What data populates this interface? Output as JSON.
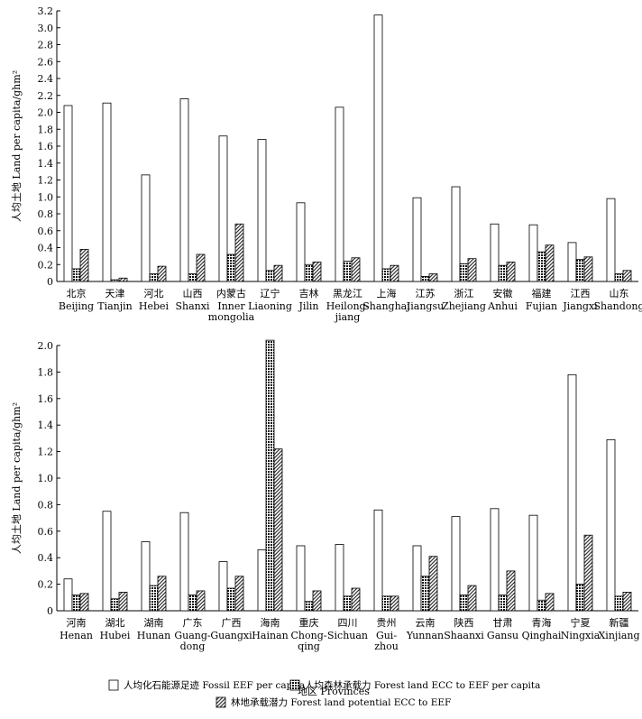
{
  "chart_data": [
    {
      "type": "bar",
      "ylabel": "人均土地  Land per capita/ghm²",
      "ylim": [
        0,
        3.2
      ],
      "yticks": [
        "0",
        "0.2",
        "0.4",
        "0.6",
        "0.8",
        "1.0",
        "1.2",
        "1.4",
        "1.6",
        "1.8",
        "2.0",
        "2.2",
        "2.4",
        "2.6",
        "2.8",
        "3.0",
        "3.2"
      ],
      "categories": [
        {
          "cn": "北京",
          "en": [
            "Beijing"
          ]
        },
        {
          "cn": "天津",
          "en": [
            "Tianjin"
          ]
        },
        {
          "cn": "河北",
          "en": [
            "Hebei"
          ]
        },
        {
          "cn": "山西",
          "en": [
            "Shanxi"
          ]
        },
        {
          "cn": "内蒙古",
          "en": [
            "Inner",
            "mongolia"
          ]
        },
        {
          "cn": "辽宁",
          "en": [
            "Liaoning"
          ]
        },
        {
          "cn": "吉林",
          "en": [
            "Jilin"
          ]
        },
        {
          "cn": "黑龙江",
          "en": [
            "Heilong-",
            "jiang"
          ]
        },
        {
          "cn": "上海",
          "en": [
            "Shanghai"
          ]
        },
        {
          "cn": "江苏",
          "en": [
            "Jiangsu"
          ]
        },
        {
          "cn": "浙江",
          "en": [
            "Zhejiang"
          ]
        },
        {
          "cn": "安徽",
          "en": [
            "Anhui"
          ]
        },
        {
          "cn": "福建",
          "en": [
            "Fujian"
          ]
        },
        {
          "cn": "江西",
          "en": [
            "Jiangxi"
          ]
        },
        {
          "cn": "山东",
          "en": [
            "Shandong"
          ]
        }
      ],
      "series": [
        {
          "name": "Fossil EEF per capita",
          "values": [
            2.08,
            2.11,
            1.26,
            2.16,
            1.72,
            1.68,
            0.93,
            2.06,
            3.15,
            0.99,
            1.12,
            0.68,
            0.67,
            0.46,
            0.98
          ]
        },
        {
          "name": "Forest land ECC to EEF per capita",
          "values": [
            0.15,
            0.02,
            0.09,
            0.09,
            0.32,
            0.13,
            0.2,
            0.24,
            0.15,
            0.06,
            0.21,
            0.19,
            0.35,
            0.26,
            0.09
          ]
        },
        {
          "name": "Forest land potential ECC to EEF",
          "values": [
            0.38,
            0.04,
            0.18,
            0.32,
            0.68,
            0.19,
            0.23,
            0.28,
            0.19,
            0.09,
            0.27,
            0.23,
            0.43,
            0.29,
            0.13
          ]
        }
      ]
    },
    {
      "type": "bar",
      "ylabel": "人均土地  Land per capita/ghm²",
      "xlabel": "地区  Provinces",
      "ylim": [
        0,
        2.0
      ],
      "yticks": [
        "0",
        "0.2",
        "0.4",
        "0.6",
        "0.8",
        "1.0",
        "1.2",
        "1.4",
        "1.6",
        "1.8",
        "2.0"
      ],
      "categories": [
        {
          "cn": "河南",
          "en": [
            "Henan"
          ]
        },
        {
          "cn": "湖北",
          "en": [
            "Hubei"
          ]
        },
        {
          "cn": "湖南",
          "en": [
            "Hunan"
          ]
        },
        {
          "cn": "广东",
          "en": [
            "Guang-",
            "dong"
          ]
        },
        {
          "cn": "广西",
          "en": [
            "Guangxi"
          ]
        },
        {
          "cn": "海南",
          "en": [
            "Hainan"
          ]
        },
        {
          "cn": "重庆",
          "en": [
            "Chong-",
            "qing"
          ]
        },
        {
          "cn": "四川",
          "en": [
            "Sichuan"
          ]
        },
        {
          "cn": "贵州",
          "en": [
            "Gui-",
            "zhou"
          ]
        },
        {
          "cn": "云南",
          "en": [
            "Yunnan"
          ]
        },
        {
          "cn": "陕西",
          "en": [
            "Shaanxi"
          ]
        },
        {
          "cn": "甘肃",
          "en": [
            "Gansu"
          ]
        },
        {
          "cn": "青海",
          "en": [
            "Qinghai"
          ]
        },
        {
          "cn": "宁夏",
          "en": [
            "Ningxia"
          ]
        },
        {
          "cn": "新疆",
          "en": [
            "Xinjiang"
          ]
        }
      ],
      "series": [
        {
          "name": "Fossil EEF per capita",
          "values": [
            0.24,
            0.75,
            0.52,
            0.74,
            0.37,
            0.46,
            0.49,
            0.5,
            0.76,
            0.49,
            0.71,
            0.77,
            0.72,
            1.78,
            1.29
          ]
        },
        {
          "name": "Forest land ECC to EEF per capita",
          "values": [
            0.12,
            0.09,
            0.19,
            0.12,
            0.17,
            2.04,
            0.07,
            0.11,
            0.11,
            0.26,
            0.12,
            0.12,
            0.08,
            0.2,
            0.11
          ]
        },
        {
          "name": "Forest land potential ECC to EEF",
          "values": [
            0.13,
            0.14,
            0.26,
            0.15,
            0.26,
            1.22,
            0.15,
            0.17,
            0.11,
            0.41,
            0.19,
            0.3,
            0.13,
            0.57,
            0.14
          ]
        }
      ]
    }
  ],
  "legend": {
    "items": [
      {
        "cn": "人均化石能源足迹",
        "en": "Fossil EEF per capita"
      },
      {
        "cn": "人均森林承载力",
        "en": "Forest land ECC to EEF per capita"
      },
      {
        "cn": "林地承载潜力",
        "en": "Forest land potential ECC to EEF"
      }
    ]
  }
}
